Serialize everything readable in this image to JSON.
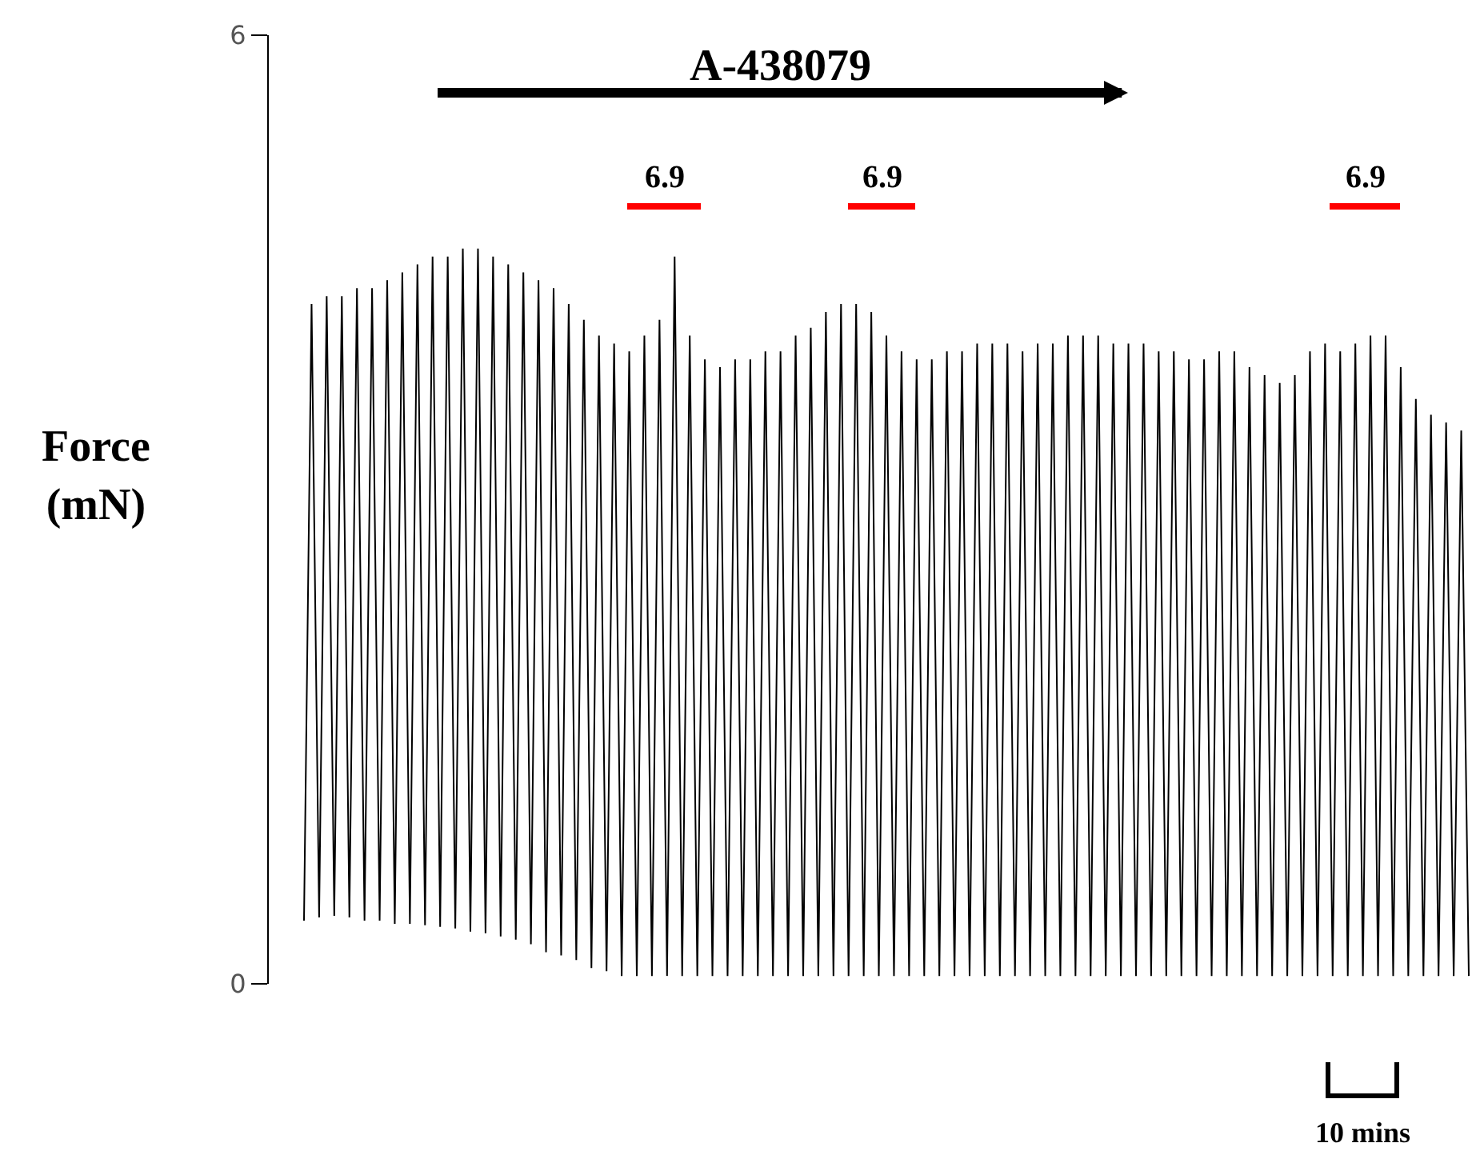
{
  "chart_data": {
    "type": "line",
    "ylabel": "Force\n(mN)",
    "ylim": [
      0,
      6
    ],
    "yticks": [
      0,
      6
    ],
    "tick_labels": "y",
    "marker": "none",
    "line_style": "solid",
    "categories": [
      null,
      null,
      null,
      null,
      null,
      null,
      null,
      null,
      null,
      null,
      null,
      null,
      null,
      null,
      null,
      null,
      null,
      null,
      null,
      null,
      null,
      null,
      null,
      null,
      null,
      null,
      null,
      null,
      null,
      null,
      null,
      null,
      null,
      null,
      null,
      null,
      null,
      null,
      null,
      null,
      null,
      null,
      null,
      null,
      null,
      null,
      null,
      null,
      null,
      null,
      null,
      null,
      null,
      null,
      null,
      null,
      null,
      null,
      null,
      null,
      null,
      null,
      null,
      null,
      null,
      null,
      null,
      null,
      null,
      null,
      null,
      null,
      null,
      null,
      null,
      null,
      null,
      null,
      null,
      null,
      null,
      null,
      null,
      null,
      null,
      null,
      null,
      null,
      null,
      null,
      null,
      null,
      null,
      null,
      null,
      null,
      null,
      null,
      null,
      null,
      null,
      null,
      null,
      null,
      null,
      null,
      null,
      null,
      null,
      null,
      null,
      null,
      null,
      null,
      null,
      null,
      null,
      null,
      null,
      null,
      null,
      null,
      null,
      null,
      null,
      null,
      null,
      null,
      null,
      null,
      null,
      null,
      null,
      null,
      null,
      null,
      null,
      null,
      null,
      null,
      null,
      null,
      null,
      null,
      null,
      null,
      null,
      null,
      null,
      null,
      null,
      null,
      null,
      null,
      null
    ],
    "series": [
      {
        "color": "#000000",
        "values": [
          0.4,
          4.3,
          0.42,
          4.35,
          0.43,
          4.35,
          0.42,
          4.4,
          0.4,
          4.4,
          0.4,
          4.45,
          0.38,
          4.5,
          0.38,
          4.55,
          0.37,
          4.6,
          0.36,
          4.6,
          0.35,
          4.65,
          0.33,
          4.65,
          0.32,
          4.6,
          0.3,
          4.55,
          0.28,
          4.5,
          0.25,
          4.45,
          0.2,
          4.4,
          0.18,
          4.3,
          0.15,
          4.2,
          0.1,
          4.1,
          0.08,
          4.05,
          0.05,
          4.0,
          0.05,
          4.1,
          0.05,
          4.2,
          0.05,
          4.6,
          0.05,
          4.1,
          0.05,
          3.95,
          0.05,
          3.9,
          0.05,
          3.95,
          0.05,
          3.95,
          0.05,
          4.0,
          0.05,
          4.0,
          0.05,
          4.1,
          0.05,
          4.15,
          0.05,
          4.25,
          0.05,
          4.3,
          0.05,
          4.3,
          0.05,
          4.25,
          0.05,
          4.1,
          0.05,
          4.0,
          0.05,
          3.95,
          0.05,
          3.95,
          0.05,
          4.0,
          0.05,
          4.0,
          0.05,
          4.05,
          0.05,
          4.05,
          0.05,
          4.05,
          0.05,
          4.0,
          0.05,
          4.05,
          0.05,
          4.05,
          0.05,
          4.1,
          0.05,
          4.1,
          0.05,
          4.1,
          0.05,
          4.05,
          0.05,
          4.05,
          0.05,
          4.05,
          0.05,
          4.0,
          0.05,
          4.0,
          0.05,
          3.95,
          0.05,
          3.95,
          0.05,
          4.0,
          0.05,
          4.0,
          0.05,
          3.9,
          0.05,
          3.85,
          0.05,
          3.8,
          0.05,
          3.85,
          0.05,
          4.0,
          0.05,
          4.05,
          0.05,
          4.0,
          0.05,
          4.05,
          0.05,
          4.1,
          0.05,
          4.1,
          0.05,
          3.9,
          0.05,
          3.7,
          0.05,
          3.6,
          0.05,
          3.55,
          0.05,
          3.5,
          0.05
        ]
      }
    ],
    "annotations": [
      "A-438079",
      "6.9",
      "6.9",
      "6.9",
      "10 mins"
    ]
  }
}
